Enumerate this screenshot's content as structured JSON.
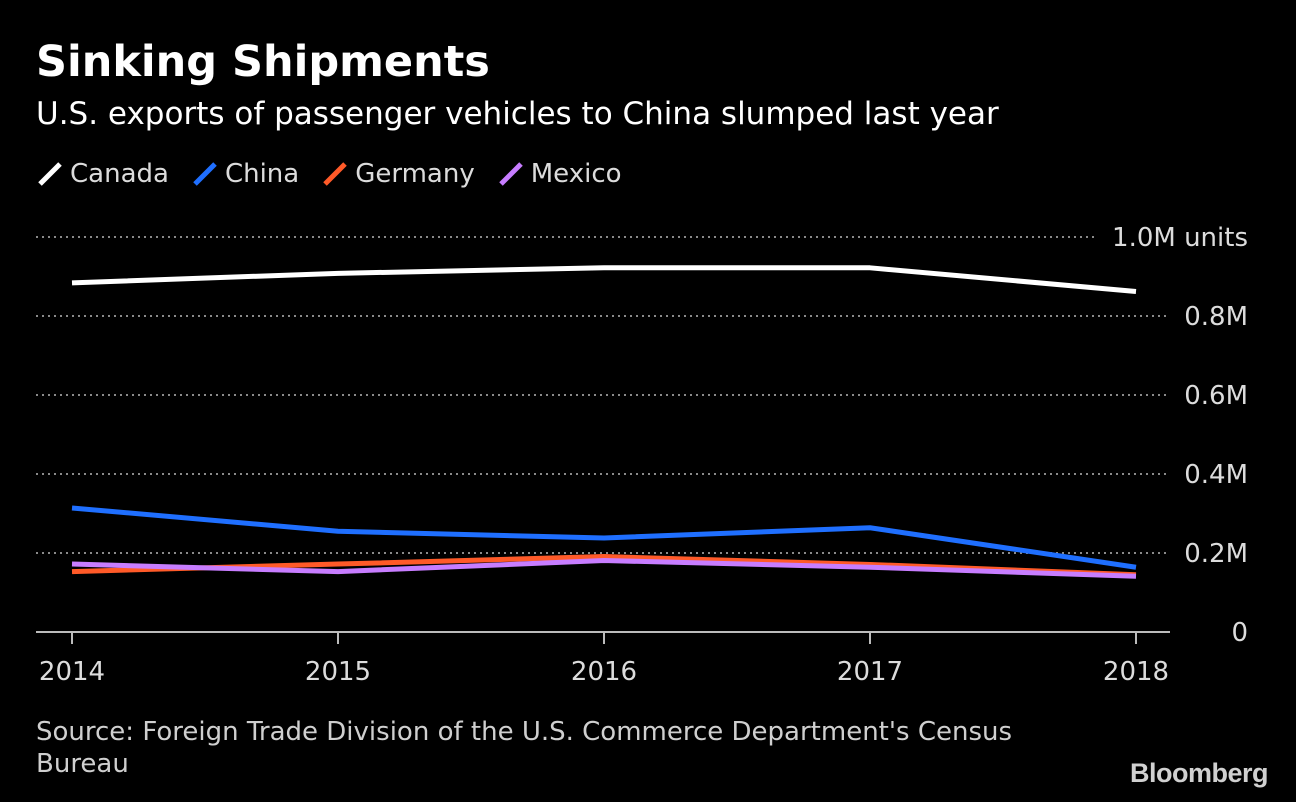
{
  "chart_data": {
    "type": "line",
    "title": "Sinking Shipments",
    "subtitle": "U.S. exports of passenger vehicles to China slumped last year",
    "categories": [
      "2014",
      "2015",
      "2016",
      "2017",
      "2018"
    ],
    "series": [
      {
        "name": "Canada",
        "color": "#ffffff",
        "values": [
          884000,
          908000,
          922000,
          922000,
          862000
        ]
      },
      {
        "name": "China",
        "color": "#1f6fff",
        "values": [
          314000,
          255000,
          238000,
          264000,
          164000
        ]
      },
      {
        "name": "Germany",
        "color": "#ff5a28",
        "values": [
          153000,
          172000,
          191000,
          171000,
          145000
        ]
      },
      {
        "name": "Mexico",
        "color": "#c77dff",
        "values": [
          172000,
          153000,
          181000,
          164000,
          141000
        ]
      }
    ],
    "ylim": [
      0,
      1000000
    ],
    "yticks": [
      {
        "value": 1000000,
        "label": "1.0M units"
      },
      {
        "value": 800000,
        "label": "0.8M"
      },
      {
        "value": 600000,
        "label": "0.6M"
      },
      {
        "value": 400000,
        "label": "0.4M"
      },
      {
        "value": 200000,
        "label": "0.2M"
      },
      {
        "value": 0,
        "label": "0"
      }
    ],
    "xlabel": "",
    "ylabel": "",
    "grid": true,
    "legend_position": "top-left",
    "source": "Source: Foreign Trade Division of the U.S. Commerce Department's Census Bureau",
    "brand": "Bloomberg"
  }
}
